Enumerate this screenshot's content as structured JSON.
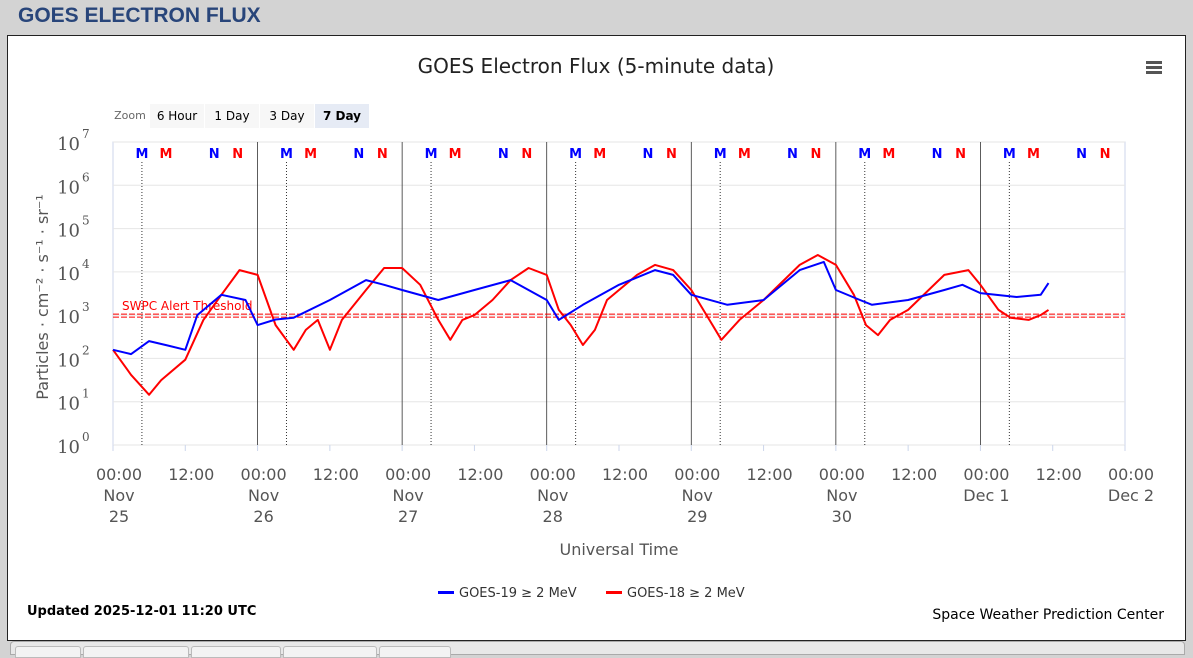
{
  "header": {
    "title": "GOES ELECTRON FLUX"
  },
  "zoom": {
    "label": "Zoom",
    "buttons": [
      "6 Hour",
      "1 Day",
      "3 Day",
      "7 Day"
    ],
    "selected": "7 Day"
  },
  "menu_icon": "hamburger-menu-icon",
  "footer": {
    "updated": "Updated 2025-12-01 11:20 UTC",
    "credit": "Space Weather Prediction Center"
  },
  "colors": {
    "goes19": "#0000ff",
    "goes18": "#ff0000",
    "header": "#28457a"
  },
  "chart_data": {
    "type": "line",
    "title": "GOES Electron Flux (5-minute data)",
    "xlabel": "Universal Time",
    "ylabel": "Particles · cm⁻² · s⁻¹ · sr⁻¹",
    "yscale": "log",
    "ylim_log10": [
      0,
      7
    ],
    "y_ticks": [
      {
        "base": "10",
        "exp": "0"
      },
      {
        "base": "10",
        "exp": "1"
      },
      {
        "base": "10",
        "exp": "2"
      },
      {
        "base": "10",
        "exp": "3"
      },
      {
        "base": "10",
        "exp": "4"
      },
      {
        "base": "10",
        "exp": "5"
      },
      {
        "base": "10",
        "exp": "6"
      },
      {
        "base": "10",
        "exp": "7"
      }
    ],
    "x_range_hours_from": "2025-11-25 00:00",
    "x_range_hours": [
      0,
      168
    ],
    "x_ticks": [
      [
        "00:00",
        "Nov",
        "25"
      ],
      [
        "12:00"
      ],
      [
        "00:00",
        "Nov",
        "26"
      ],
      [
        "12:00"
      ],
      [
        "00:00",
        "Nov",
        "27"
      ],
      [
        "12:00"
      ],
      [
        "00:00",
        "Nov",
        "28"
      ],
      [
        "12:00"
      ],
      [
        "00:00",
        "Nov",
        "29"
      ],
      [
        "12:00"
      ],
      [
        "00:00",
        "Nov",
        "30"
      ],
      [
        "12:00"
      ],
      [
        "00:00",
        "Dec 1"
      ],
      [
        "12:00"
      ],
      [
        "00:00",
        "Dec 2"
      ]
    ],
    "threshold": {
      "label": "SWPC Alert Threshold",
      "value": 1000
    },
    "markers": {
      "offsets_hours": [
        {
          "label": "M",
          "series": "goes19",
          "h": 4.8
        },
        {
          "label": "M",
          "series": "goes18",
          "h": 8.8
        },
        {
          "label": "N",
          "series": "goes19",
          "h": 16.8
        },
        {
          "label": "N",
          "series": "goes18",
          "h": 20.7
        }
      ],
      "days": 7
    },
    "legend": "bottom-center",
    "series": [
      {
        "name": "GOES-19 ≥ 2 MeV",
        "key": "goes19",
        "points_hour_log10": [
          [
            0,
            2.2
          ],
          [
            3,
            2.1
          ],
          [
            6,
            2.4
          ],
          [
            9,
            2.3
          ],
          [
            12,
            2.2
          ],
          [
            14,
            3.0
          ],
          [
            18,
            3.47
          ],
          [
            22,
            3.35
          ],
          [
            24,
            2.77
          ],
          [
            27,
            2.9
          ],
          [
            30,
            2.94
          ],
          [
            36,
            3.35
          ],
          [
            42,
            3.81
          ],
          [
            45,
            3.7
          ],
          [
            48,
            3.58
          ],
          [
            54,
            3.35
          ],
          [
            60,
            3.58
          ],
          [
            66,
            3.81
          ],
          [
            72,
            3.35
          ],
          [
            74,
            2.89
          ],
          [
            78,
            3.24
          ],
          [
            84,
            3.7
          ],
          [
            90,
            4.04
          ],
          [
            93,
            3.93
          ],
          [
            96,
            3.47
          ],
          [
            102,
            3.24
          ],
          [
            108,
            3.35
          ],
          [
            114,
            4.04
          ],
          [
            118,
            4.23
          ],
          [
            120,
            3.58
          ],
          [
            124,
            3.35
          ],
          [
            126,
            3.24
          ],
          [
            132,
            3.35
          ],
          [
            138,
            3.58
          ],
          [
            141,
            3.7
          ],
          [
            144,
            3.51
          ],
          [
            150,
            3.42
          ],
          [
            154,
            3.47
          ],
          [
            155.3,
            3.74
          ]
        ]
      },
      {
        "name": "GOES-18 ≥ 2 MeV",
        "key": "goes18",
        "points_hour_log10": [
          [
            0,
            2.2
          ],
          [
            3,
            1.62
          ],
          [
            6,
            1.16
          ],
          [
            8,
            1.5
          ],
          [
            12,
            1.97
          ],
          [
            15,
            2.89
          ],
          [
            18,
            3.47
          ],
          [
            21,
            4.04
          ],
          [
            24,
            3.93
          ],
          [
            27,
            2.77
          ],
          [
            30,
            2.2
          ],
          [
            32,
            2.66
          ],
          [
            34,
            2.89
          ],
          [
            36,
            2.2
          ],
          [
            38,
            2.89
          ],
          [
            42,
            3.58
          ],
          [
            45,
            4.09
          ],
          [
            48,
            4.09
          ],
          [
            51,
            3.7
          ],
          [
            54,
            2.89
          ],
          [
            56,
            2.43
          ],
          [
            58,
            2.89
          ],
          [
            60,
            3.0
          ],
          [
            63,
            3.35
          ],
          [
            66,
            3.81
          ],
          [
            69,
            4.09
          ],
          [
            72,
            3.93
          ],
          [
            74,
            3.12
          ],
          [
            76,
            2.77
          ],
          [
            78,
            2.31
          ],
          [
            80,
            2.66
          ],
          [
            82,
            3.35
          ],
          [
            87,
            3.93
          ],
          [
            90,
            4.16
          ],
          [
            93,
            4.04
          ],
          [
            96,
            3.58
          ],
          [
            99,
            2.89
          ],
          [
            101,
            2.43
          ],
          [
            104,
            2.89
          ],
          [
            108,
            3.35
          ],
          [
            114,
            4.16
          ],
          [
            117,
            4.39
          ],
          [
            120,
            4.16
          ],
          [
            123,
            3.47
          ],
          [
            125,
            2.77
          ],
          [
            127,
            2.54
          ],
          [
            129,
            2.89
          ],
          [
            132,
            3.12
          ],
          [
            138,
            3.93
          ],
          [
            142,
            4.04
          ],
          [
            144,
            3.7
          ],
          [
            147,
            3.12
          ],
          [
            149,
            2.94
          ],
          [
            152,
            2.89
          ],
          [
            154,
            3.0
          ],
          [
            155.3,
            3.12
          ]
        ]
      }
    ]
  }
}
